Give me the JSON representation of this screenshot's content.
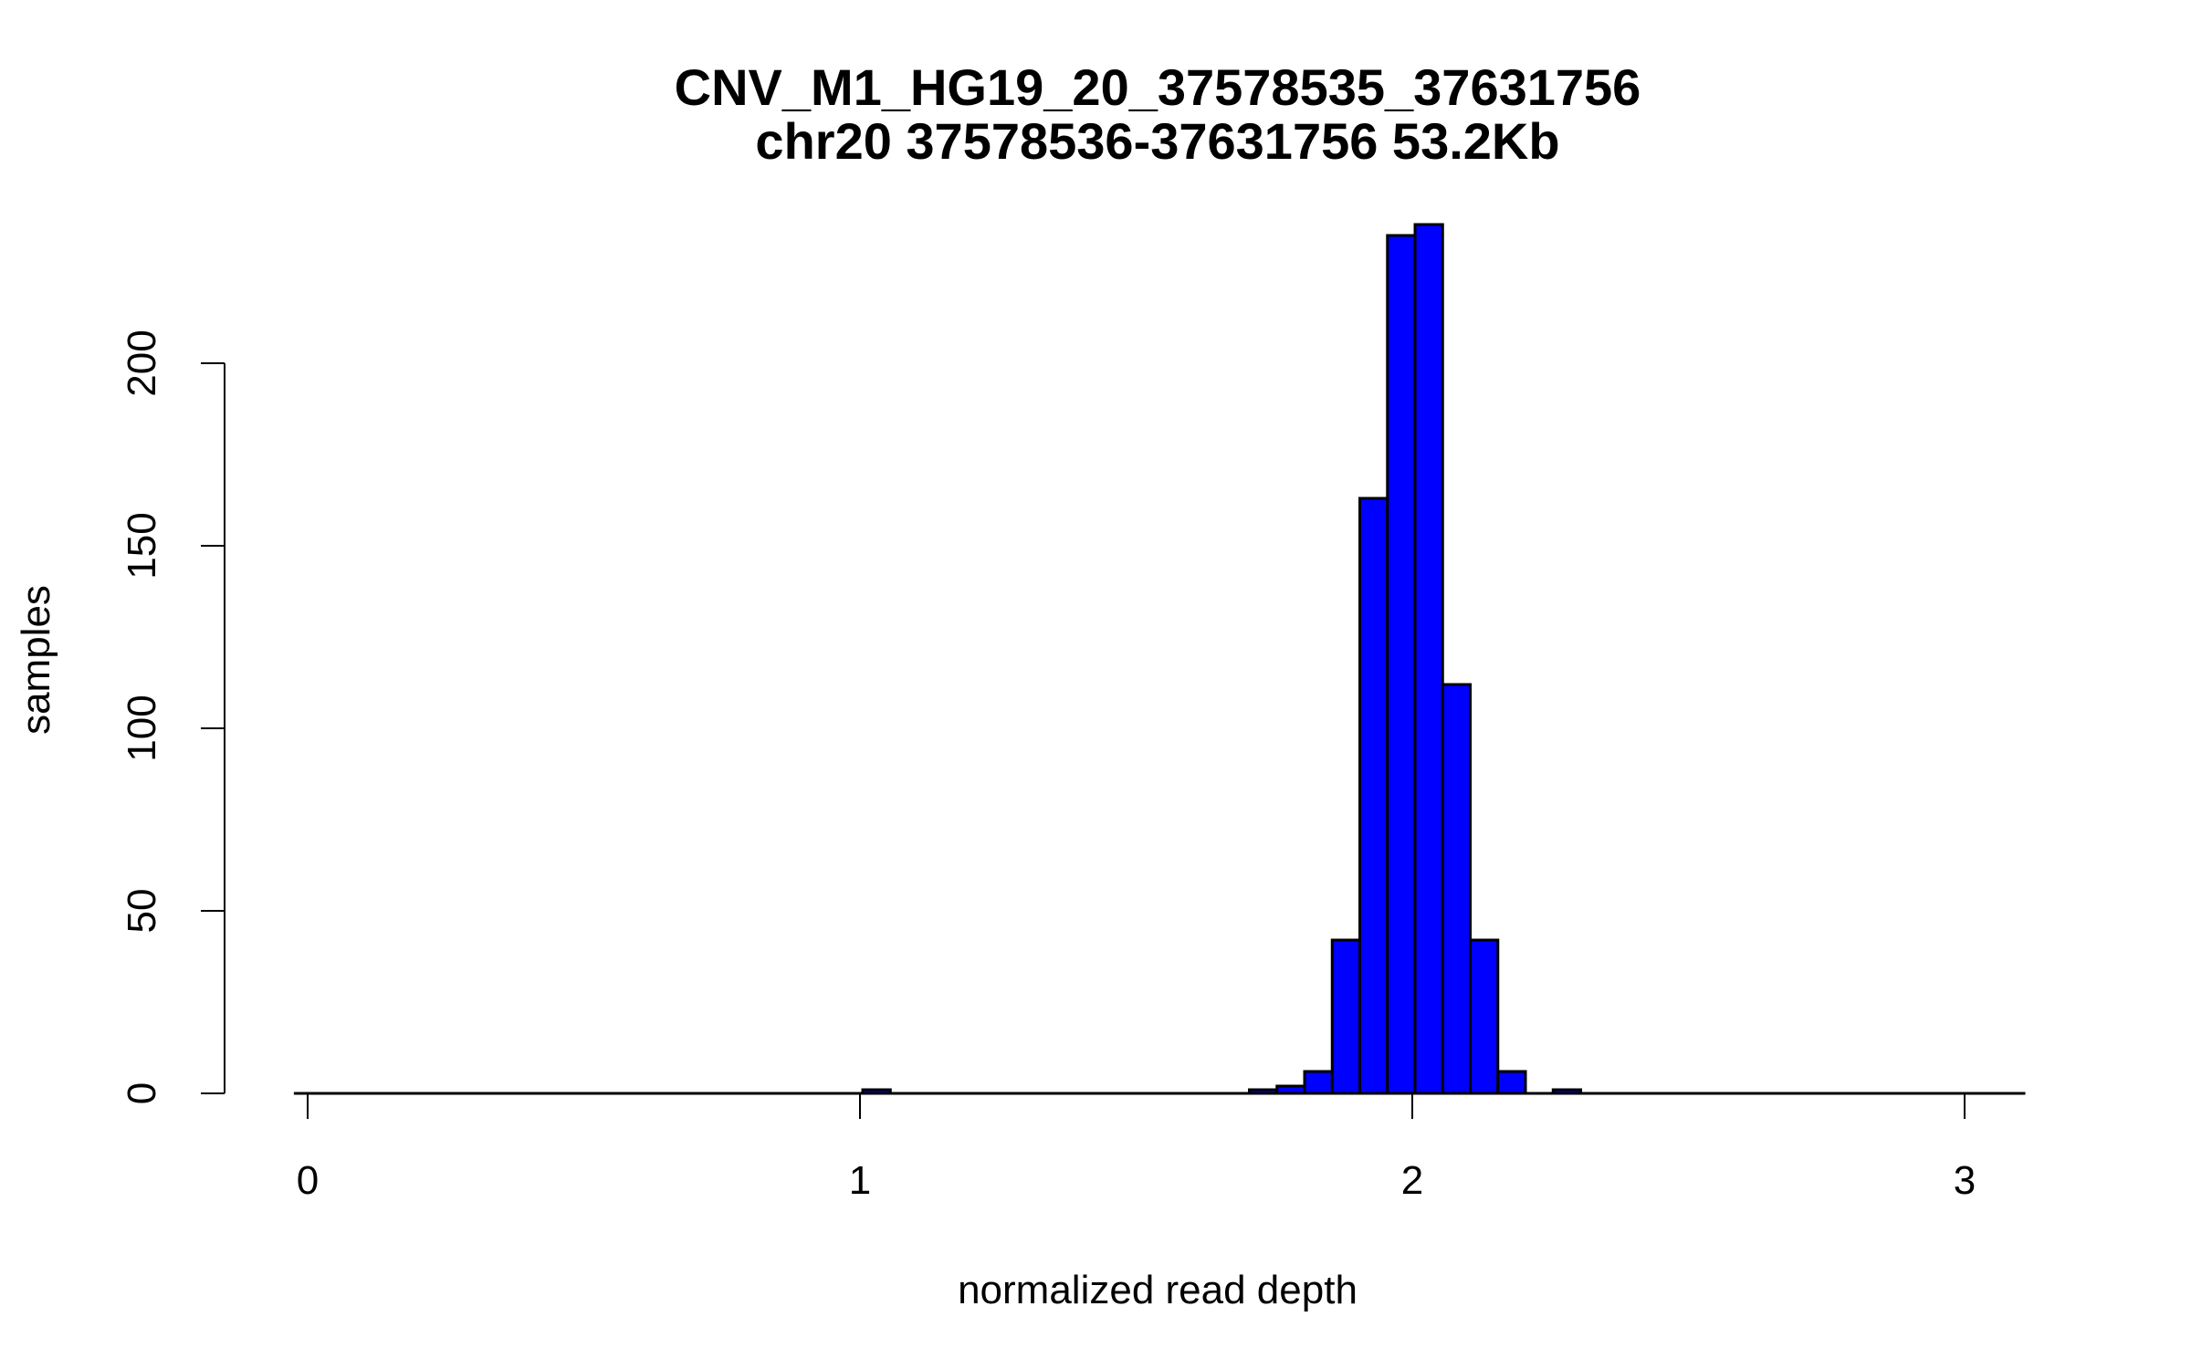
{
  "chart_data": {
    "type": "bar",
    "subtype": "histogram",
    "title": "CNV_M1_HG19_20_37578535_37631756",
    "subtitle": "chr20 37578536-37631756 53.2Kb",
    "xlabel": "normalized read depth",
    "ylabel": "samples",
    "xlim": [
      -0.025,
      3.11
    ],
    "ylim": [
      0,
      240
    ],
    "xticks": [
      "0",
      "1",
      "2",
      "3"
    ],
    "yticks": [
      "0",
      "50",
      "100",
      "150",
      "200"
    ],
    "bin_width": 0.05,
    "bins": [
      {
        "start": 1.005,
        "end": 1.055,
        "count": 1
      },
      {
        "start": 1.705,
        "end": 1.755,
        "count": 1
      },
      {
        "start": 1.755,
        "end": 1.805,
        "count": 2
      },
      {
        "start": 1.805,
        "end": 1.855,
        "count": 6
      },
      {
        "start": 1.855,
        "end": 1.905,
        "count": 42
      },
      {
        "start": 1.905,
        "end": 1.955,
        "count": 163
      },
      {
        "start": 1.955,
        "end": 2.005,
        "count": 235
      },
      {
        "start": 2.005,
        "end": 2.055,
        "count": 238
      },
      {
        "start": 2.055,
        "end": 2.105,
        "count": 112
      },
      {
        "start": 2.105,
        "end": 2.155,
        "count": 42
      },
      {
        "start": 2.155,
        "end": 2.205,
        "count": 6
      },
      {
        "start": 2.255,
        "end": 2.305,
        "count": 1
      }
    ],
    "bar_color": "#0000ff",
    "edge_color": "#000000",
    "grid": false,
    "legend": "none"
  }
}
